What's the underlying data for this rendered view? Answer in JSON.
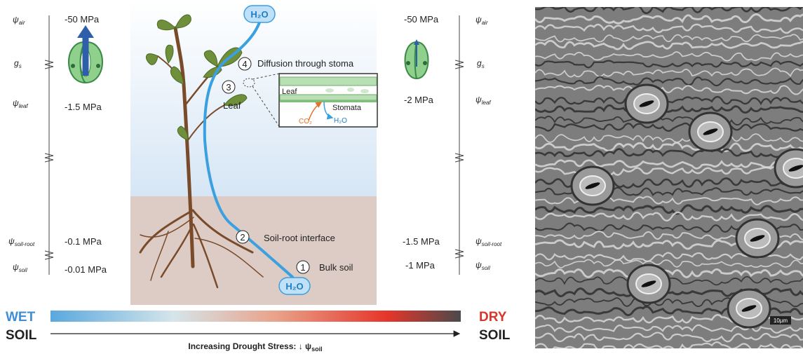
{
  "left_panel": {
    "labels": [
      {
        "symbol": "ψ",
        "sub": "air"
      },
      {
        "symbol": "g",
        "sub": "s"
      },
      {
        "symbol": "ψ",
        "sub": "leaf"
      },
      {
        "symbol": "ψ",
        "sub": "soil-root"
      },
      {
        "symbol": "ψ",
        "sub": "soil"
      }
    ],
    "values": [
      "-50 MPa",
      "-1.5 MPa",
      "-0.1 MPa",
      "-0.01 MPa"
    ]
  },
  "right_panel": {
    "labels": [
      {
        "symbol": "ψ",
        "sub": "air"
      },
      {
        "symbol": "g",
        "sub": "s"
      },
      {
        "symbol": "ψ",
        "sub": "leaf"
      },
      {
        "symbol": "ψ",
        "sub": "soil-root"
      },
      {
        "symbol": "ψ",
        "sub": "soil"
      }
    ],
    "values": [
      "-50 MPa",
      "-2 MPa",
      "-1.5 MPa",
      "-1 MPa"
    ]
  },
  "plant": {
    "top_label": "H₂O",
    "bottom_label": "H₂O",
    "steps": [
      {
        "number": "1",
        "label": "Bulk soil"
      },
      {
        "number": "2",
        "label": "Soil-root interface"
      },
      {
        "number": "3",
        "label": "Leaf"
      },
      {
        "number": "4",
        "label": "Diffusion through stoma"
      }
    ]
  },
  "inset": {
    "leaf": "Leaf",
    "stomata": "Stomata",
    "co2": "CO₂",
    "h2o": "H₂O"
  },
  "scale": {
    "wet": "WET",
    "wet_soil": "SOIL",
    "dry": "DRY",
    "dry_soil": "SOIL",
    "caption": "Increasing Drought Stress: ↓ ψ",
    "caption_sub": "soil"
  },
  "micrograph": {
    "scale_bar": "10µm"
  }
}
